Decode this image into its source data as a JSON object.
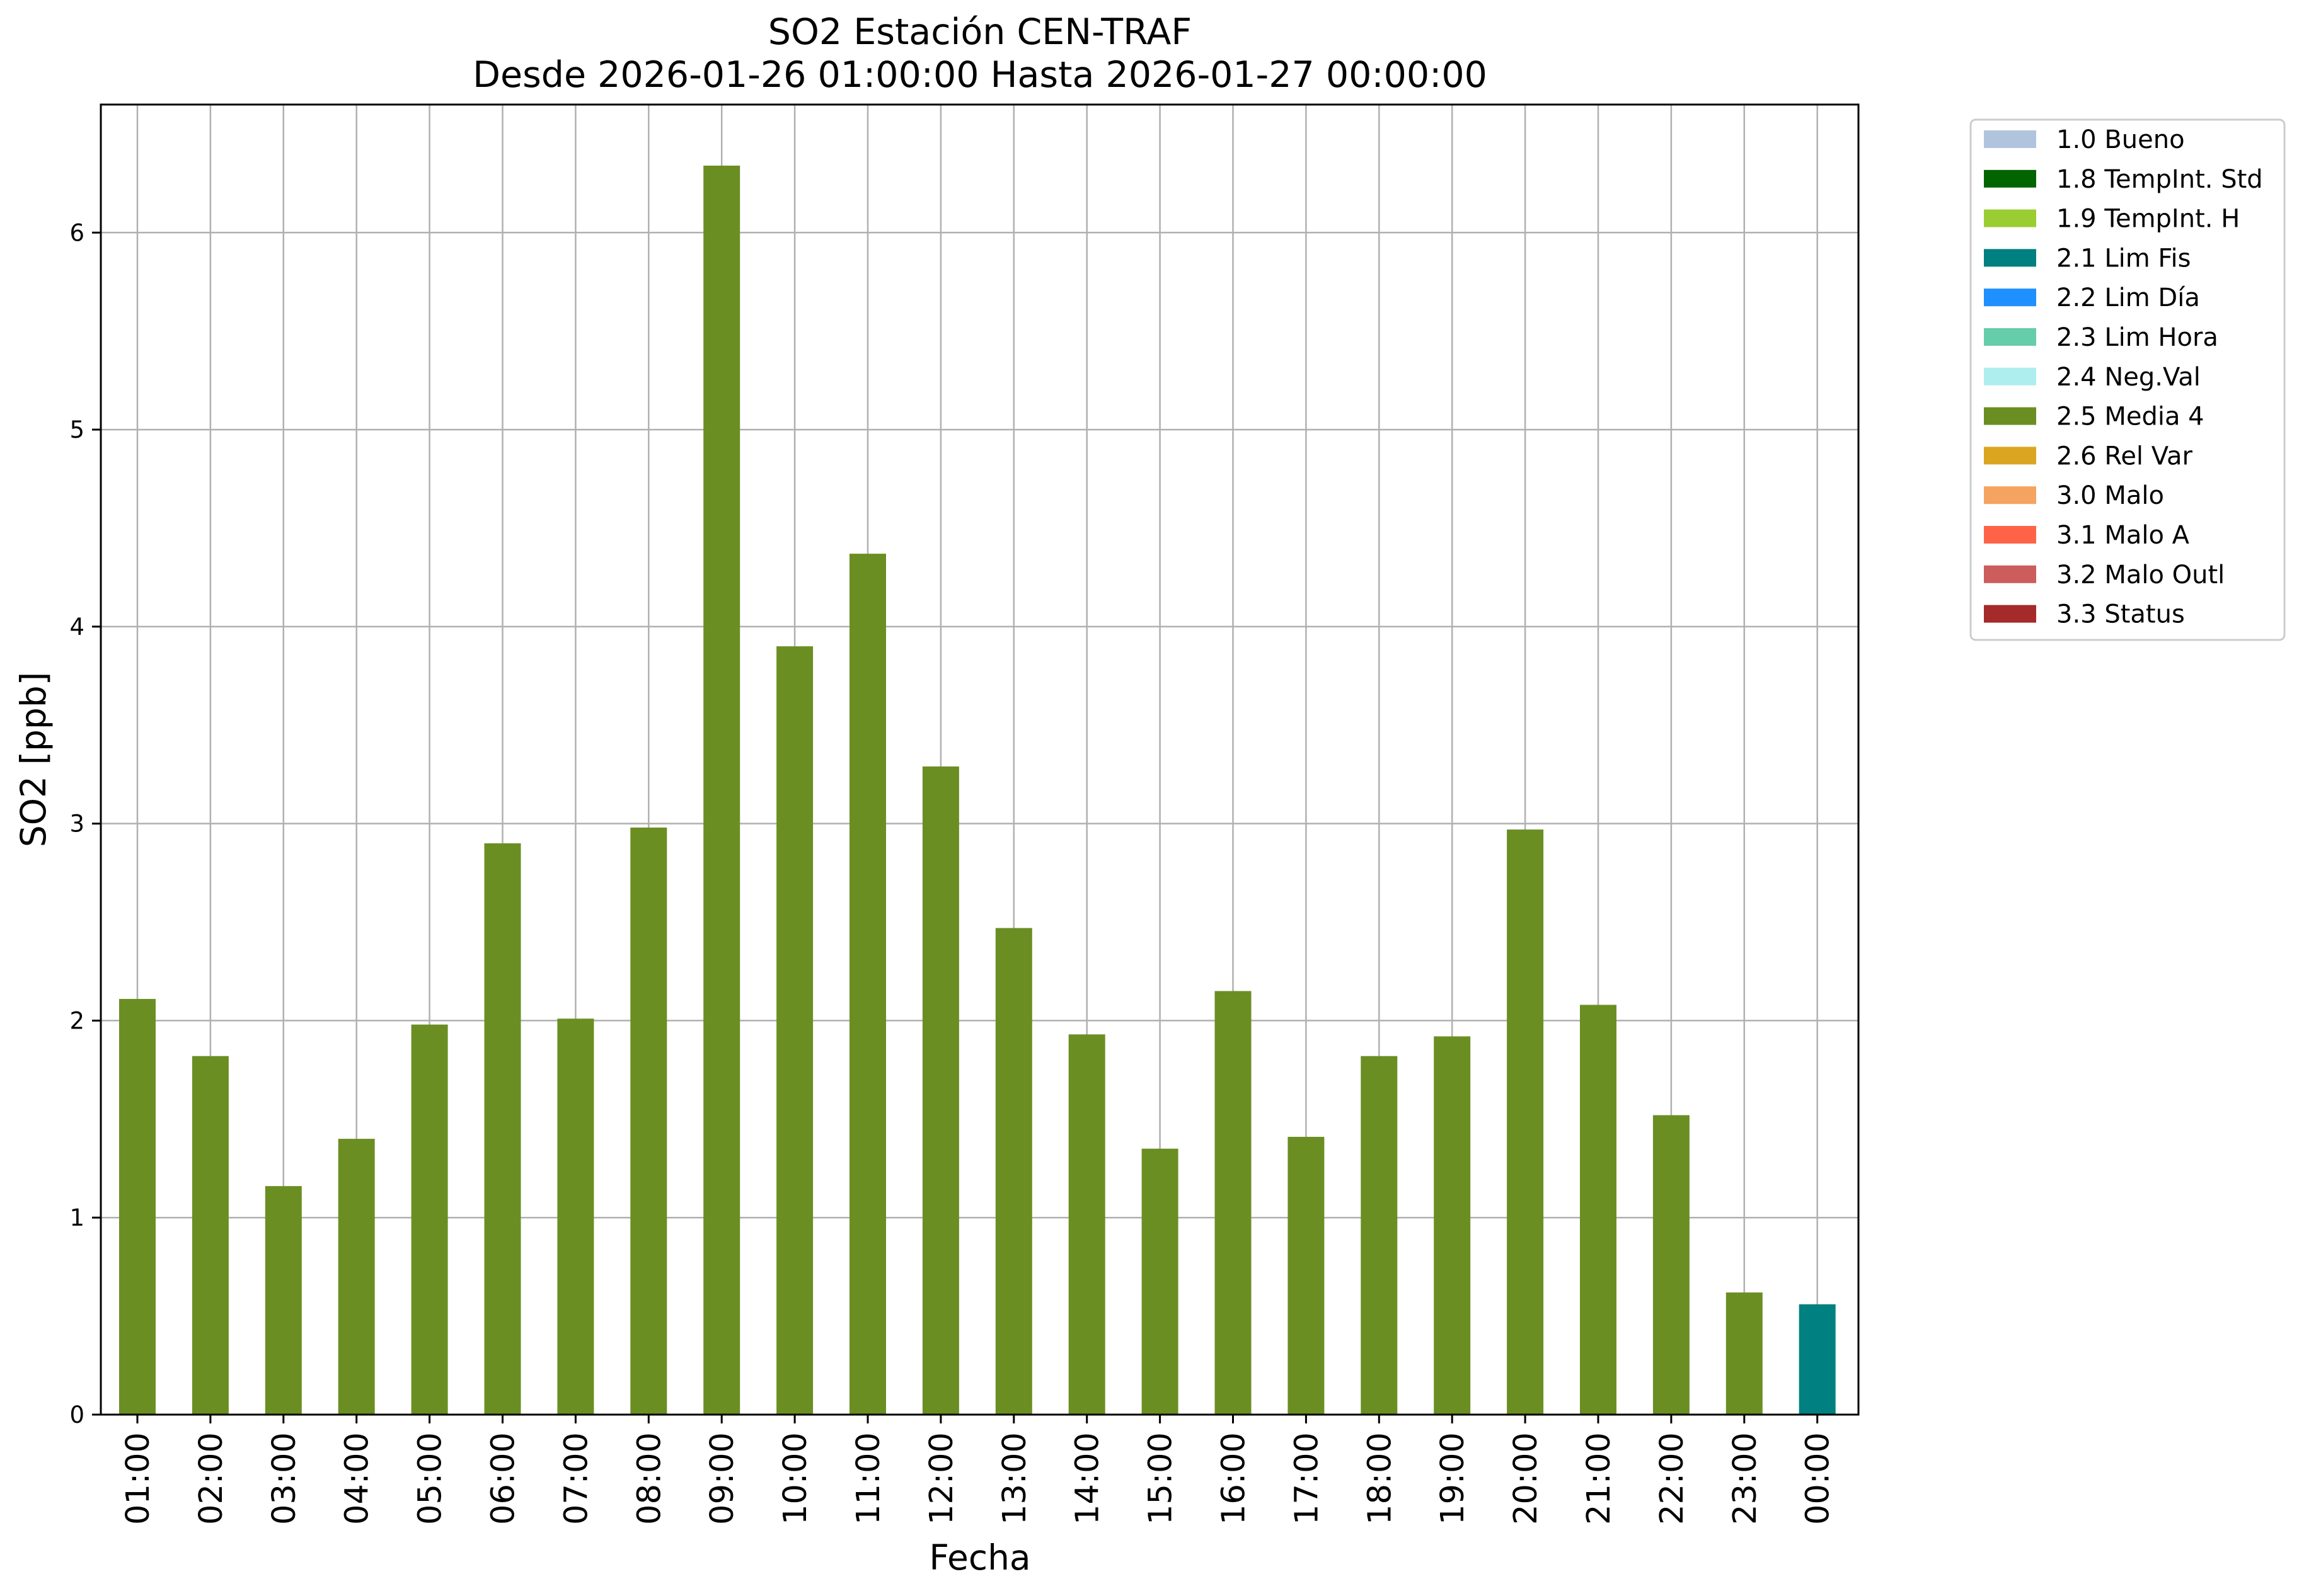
{
  "chart_data": {
    "type": "bar",
    "title": "SO2 Estación CEN-TRAF",
    "subtitle": "Desde 2026-01-26 01:00:00 Hasta 2026-01-27 00:00:00",
    "xlabel": "Fecha",
    "ylabel": "SO2 [ppb]",
    "ylim": [
      0,
      6.65
    ],
    "yticks": [
      0,
      1,
      2,
      3,
      4,
      5,
      6
    ],
    "grid": true,
    "legend_position": "outside-top-right",
    "categories": [
      "01:00",
      "02:00",
      "03:00",
      "04:00",
      "05:00",
      "06:00",
      "07:00",
      "08:00",
      "09:00",
      "10:00",
      "11:00",
      "12:00",
      "13:00",
      "14:00",
      "15:00",
      "16:00",
      "17:00",
      "18:00",
      "19:00",
      "20:00",
      "21:00",
      "22:00",
      "23:00",
      "00:00"
    ],
    "values": [
      2.11,
      1.82,
      1.16,
      1.4,
      1.98,
      2.9,
      2.01,
      2.98,
      6.34,
      3.9,
      4.37,
      3.29,
      2.47,
      1.93,
      1.35,
      2.15,
      1.41,
      1.82,
      1.92,
      2.97,
      2.08,
      1.52,
      0.62,
      0.56
    ],
    "bar_flags": [
      "2.5 Media 4",
      "2.5 Media 4",
      "2.5 Media 4",
      "2.5 Media 4",
      "2.5 Media 4",
      "2.5 Media 4",
      "2.5 Media 4",
      "2.5 Media 4",
      "2.5 Media 4",
      "2.5 Media 4",
      "2.5 Media 4",
      "2.5 Media 4",
      "2.5 Media 4",
      "2.5 Media 4",
      "2.5 Media 4",
      "2.5 Media 4",
      "2.5 Media 4",
      "2.5 Media 4",
      "2.5 Media 4",
      "2.5 Media 4",
      "2.5 Media 4",
      "2.5 Media 4",
      "2.5 Media 4",
      "2.1 Lim Fis"
    ],
    "legend": [
      {
        "label": "1.0 Bueno",
        "color": "#b0c4de"
      },
      {
        "label": "1.8 TempInt. Std",
        "color": "#006400"
      },
      {
        "label": "1.9 TempInt. H",
        "color": "#9acd32"
      },
      {
        "label": "2.1 Lim Fis",
        "color": "#008080"
      },
      {
        "label": "2.2 Lim Día",
        "color": "#1e90ff"
      },
      {
        "label": "2.3 Lim Hora",
        "color": "#66cdaa"
      },
      {
        "label": "2.4 Neg.Val",
        "color": "#afeeee"
      },
      {
        "label": "2.5 Media 4",
        "color": "#6b8e23"
      },
      {
        "label": "2.6 Rel Var",
        "color": "#daa520"
      },
      {
        "label": "3.0 Malo",
        "color": "#f4a460"
      },
      {
        "label": "3.1 Malo A",
        "color": "#ff6347"
      },
      {
        "label": "3.2 Malo Outl",
        "color": "#cd5c5c"
      },
      {
        "label": "3.3 Status",
        "color": "#a52a2a"
      }
    ]
  }
}
